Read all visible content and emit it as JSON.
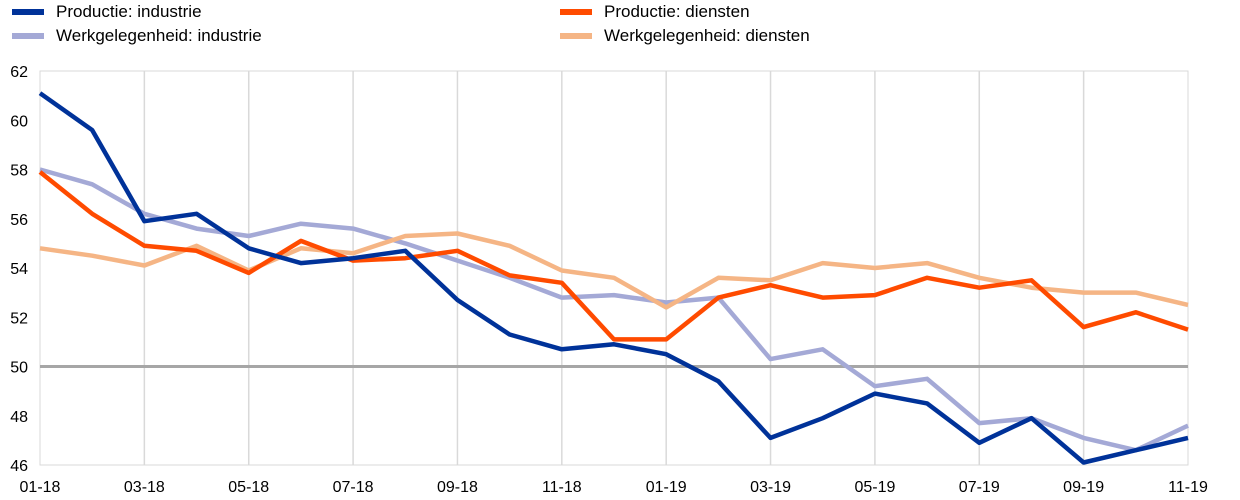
{
  "chart_data": {
    "type": "line",
    "title": "",
    "xlabel": "",
    "ylabel": "",
    "ylim": [
      46,
      62
    ],
    "yticks": [
      46,
      48,
      50,
      52,
      54,
      56,
      58,
      60,
      62
    ],
    "x_tick_labels": [
      "01-18",
      "03-18",
      "05-18",
      "07-18",
      "09-18",
      "11-18",
      "01-19",
      "03-19",
      "05-19",
      "07-19",
      "09-19",
      "11-19"
    ],
    "categories": [
      "01-18",
      "02-18",
      "03-18",
      "04-18",
      "05-18",
      "06-18",
      "07-18",
      "08-18",
      "09-18",
      "10-18",
      "11-18",
      "12-18",
      "01-19",
      "02-19",
      "03-19",
      "04-19",
      "05-19",
      "06-19",
      "07-19",
      "08-19",
      "09-19",
      "10-19",
      "11-19"
    ],
    "reference_line": {
      "y": 50,
      "color": "#a6a6a6"
    },
    "grid": {
      "vertical": true,
      "horizontal": false
    },
    "legend_position": "top",
    "series": [
      {
        "name": "Productie: industrie",
        "color": "#003299",
        "values": [
          61.1,
          59.6,
          55.9,
          56.2,
          54.8,
          54.2,
          54.4,
          54.7,
          52.7,
          51.3,
          50.7,
          50.9,
          50.5,
          49.4,
          47.1,
          47.9,
          48.9,
          48.5,
          46.9,
          47.9,
          46.1,
          46.6,
          47.1
        ]
      },
      {
        "name": "Productie: diensten",
        "color": "#ff4b00",
        "values": [
          57.9,
          56.2,
          54.9,
          54.7,
          53.8,
          55.1,
          54.3,
          54.4,
          54.7,
          53.7,
          53.4,
          51.1,
          51.1,
          52.8,
          53.3,
          52.8,
          52.9,
          53.6,
          53.2,
          53.5,
          51.6,
          52.2,
          51.5
        ]
      },
      {
        "name": "Werkgelegenheid: industrie",
        "color": "#a4a9d6",
        "values": [
          58.0,
          57.4,
          56.2,
          55.6,
          55.3,
          55.8,
          55.6,
          55.0,
          54.3,
          53.6,
          52.8,
          52.9,
          52.6,
          52.8,
          50.3,
          50.7,
          49.2,
          49.5,
          47.7,
          47.9,
          47.1,
          46.6,
          47.6
        ]
      },
      {
        "name": "Werkgelegenheid: diensten",
        "color": "#f5b585",
        "values": [
          54.8,
          54.5,
          54.1,
          54.9,
          53.9,
          54.8,
          54.6,
          55.3,
          55.4,
          54.9,
          53.9,
          53.6,
          52.4,
          53.6,
          53.5,
          54.2,
          54.0,
          54.2,
          53.6,
          53.2,
          53.0,
          53.0,
          52.5
        ]
      }
    ]
  }
}
